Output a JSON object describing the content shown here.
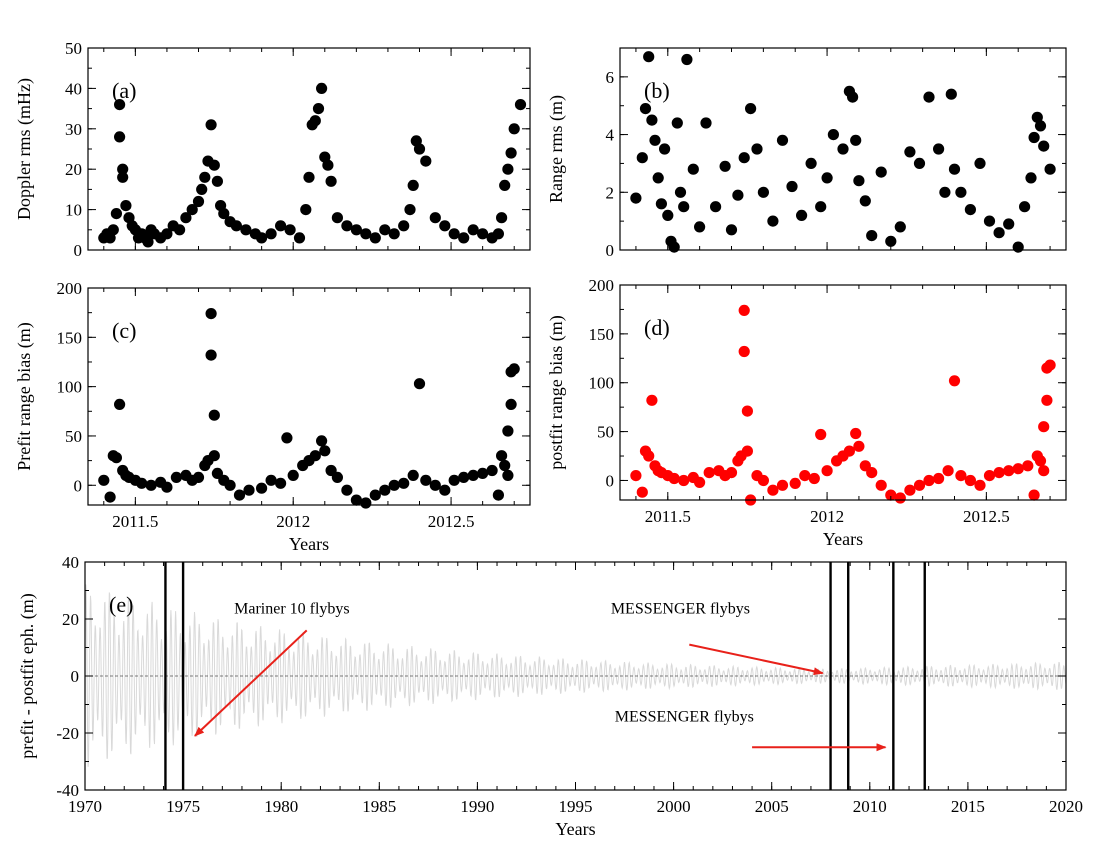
{
  "chart_data": [
    {
      "id": "a",
      "type": "scatter",
      "panel_label": "(a)",
      "ylabel": "Doppler rms (mHz)",
      "xlabel": "",
      "xlim": [
        2011.35,
        2012.75
      ],
      "ylim": [
        0,
        50
      ],
      "xticks": [
        2011.5,
        2012,
        2012.5
      ],
      "xtick_labels": [
        "",
        "",
        ""
      ],
      "yticks": [
        0,
        10,
        20,
        30,
        40,
        50
      ],
      "ytick_labels": [
        "0",
        "10",
        "20",
        "30",
        "40",
        "50"
      ],
      "marker_color": "#000000",
      "x": [
        2011.4,
        2011.41,
        2011.42,
        2011.43,
        2011.44,
        2011.45,
        2011.45,
        2011.46,
        2011.46,
        2011.47,
        2011.48,
        2011.49,
        2011.5,
        2011.51,
        2011.52,
        2011.53,
        2011.54,
        2011.55,
        2011.56,
        2011.58,
        2011.6,
        2011.62,
        2011.64,
        2011.66,
        2011.68,
        2011.7,
        2011.71,
        2011.72,
        2011.73,
        2011.74,
        2011.75,
        2011.76,
        2011.77,
        2011.78,
        2011.8,
        2011.82,
        2011.85,
        2011.88,
        2011.9,
        2011.93,
        2011.96,
        2011.99,
        2012.02,
        2012.04,
        2012.05,
        2012.06,
        2012.07,
        2012.08,
        2012.09,
        2012.1,
        2012.11,
        2012.12,
        2012.14,
        2012.17,
        2012.2,
        2012.23,
        2012.26,
        2012.29,
        2012.32,
        2012.35,
        2012.37,
        2012.38,
        2012.39,
        2012.4,
        2012.42,
        2012.45,
        2012.48,
        2012.51,
        2012.54,
        2012.57,
        2012.6,
        2012.63,
        2012.65,
        2012.66,
        2012.67,
        2012.68,
        2012.69,
        2012.7,
        2012.72
      ],
      "y": [
        3,
        4,
        3,
        5,
        9,
        36,
        28,
        20,
        18,
        11,
        8,
        6,
        5,
        3,
        4,
        3,
        2,
        5,
        4,
        3,
        4,
        6,
        5,
        8,
        10,
        12,
        15,
        18,
        22,
        31,
        21,
        17,
        11,
        9,
        7,
        6,
        5,
        4,
        3,
        4,
        6,
        5,
        3,
        10,
        18,
        31,
        32,
        35,
        40,
        23,
        21,
        17,
        8,
        6,
        5,
        4,
        3,
        5,
        4,
        6,
        10,
        16,
        27,
        25,
        22,
        8,
        6,
        4,
        3,
        5,
        4,
        3,
        4,
        8,
        16,
        20,
        24,
        30,
        36
      ]
    },
    {
      "id": "b",
      "type": "scatter",
      "panel_label": "(b)",
      "ylabel": "Range rms (m)",
      "xlabel": "",
      "xlim": [
        2011.35,
        2012.75
      ],
      "ylim": [
        0,
        7
      ],
      "xticks": [
        2011.5,
        2012,
        2012.5
      ],
      "xtick_labels": [
        "",
        "",
        ""
      ],
      "yticks": [
        0,
        2,
        4,
        6
      ],
      "ytick_labels": [
        "0",
        "2",
        "4",
        "6"
      ],
      "marker_color": "#000000",
      "x": [
        2011.4,
        2011.42,
        2011.43,
        2011.44,
        2011.45,
        2011.46,
        2011.47,
        2011.48,
        2011.49,
        2011.5,
        2011.51,
        2011.52,
        2011.53,
        2011.54,
        2011.55,
        2011.56,
        2011.58,
        2011.6,
        2011.62,
        2011.65,
        2011.68,
        2011.7,
        2011.72,
        2011.74,
        2011.76,
        2011.78,
        2011.8,
        2011.83,
        2011.86,
        2011.89,
        2011.92,
        2011.95,
        2011.98,
        2012.0,
        2012.02,
        2012.05,
        2012.07,
        2012.08,
        2012.09,
        2012.1,
        2012.12,
        2012.14,
        2012.17,
        2012.2,
        2012.23,
        2012.26,
        2012.29,
        2012.32,
        2012.35,
        2012.37,
        2012.39,
        2012.4,
        2012.42,
        2012.45,
        2012.48,
        2012.51,
        2012.54,
        2012.57,
        2012.6,
        2012.62,
        2012.64,
        2012.65,
        2012.66,
        2012.67,
        2012.68,
        2012.7
      ],
      "y": [
        1.8,
        3.2,
        4.9,
        6.7,
        4.5,
        3.8,
        2.5,
        1.6,
        3.5,
        1.2,
        0.3,
        0.1,
        4.4,
        2.0,
        1.5,
        6.6,
        2.8,
        0.8,
        4.4,
        1.5,
        2.9,
        0.7,
        1.9,
        3.2,
        4.9,
        3.5,
        2.0,
        1.0,
        3.8,
        2.2,
        1.2,
        3.0,
        1.5,
        2.5,
        4.0,
        3.5,
        5.5,
        5.3,
        3.8,
        2.4,
        1.7,
        0.5,
        2.7,
        0.3,
        0.8,
        3.4,
        3.0,
        5.3,
        3.5,
        2.0,
        5.4,
        2.8,
        2.0,
        1.4,
        3.0,
        1.0,
        0.6,
        0.9,
        0.1,
        1.5,
        2.5,
        3.9,
        4.6,
        4.3,
        3.6,
        2.8
      ]
    },
    {
      "id": "c",
      "type": "scatter",
      "panel_label": "(c)",
      "ylabel": "Prefit range bias (m)",
      "xlabel": "Years",
      "xlim": [
        2011.35,
        2012.75
      ],
      "ylim": [
        -20,
        200
      ],
      "xticks": [
        2011.5,
        2012,
        2012.5
      ],
      "xtick_labels": [
        "2011.5",
        "2012",
        "2012.5"
      ],
      "yticks": [
        0,
        50,
        100,
        150,
        200
      ],
      "ytick_labels": [
        "0",
        "50",
        "100",
        "150",
        "200"
      ],
      "marker_color": "#000000",
      "x": [
        2011.4,
        2011.42,
        2011.43,
        2011.44,
        2011.45,
        2011.46,
        2011.47,
        2011.48,
        2011.5,
        2011.52,
        2011.55,
        2011.58,
        2011.6,
        2011.63,
        2011.66,
        2011.68,
        2011.7,
        2011.72,
        2011.73,
        2011.74,
        2011.74,
        2011.75,
        2011.75,
        2011.76,
        2011.78,
        2011.8,
        2011.83,
        2011.86,
        2011.9,
        2011.93,
        2011.96,
        2011.98,
        2012.0,
        2012.03,
        2012.05,
        2012.07,
        2012.09,
        2012.1,
        2012.12,
        2012.14,
        2012.17,
        2012.2,
        2012.23,
        2012.26,
        2012.29,
        2012.32,
        2012.35,
        2012.38,
        2012.4,
        2012.42,
        2012.45,
        2012.48,
        2012.51,
        2012.54,
        2012.57,
        2012.6,
        2012.63,
        2012.65,
        2012.66,
        2012.67,
        2012.68,
        2012.68,
        2012.69,
        2012.69,
        2012.7
      ],
      "y": [
        5,
        -12,
        30,
        28,
        82,
        15,
        10,
        8,
        5,
        2,
        0,
        3,
        -2,
        8,
        10,
        5,
        8,
        20,
        25,
        132,
        174,
        71,
        30,
        12,
        5,
        0,
        -10,
        -5,
        -3,
        5,
        2,
        48,
        10,
        20,
        25,
        30,
        45,
        35,
        15,
        8,
        -5,
        -15,
        -18,
        -10,
        -5,
        0,
        2,
        10,
        103,
        5,
        0,
        -5,
        5,
        8,
        10,
        12,
        15,
        -10,
        30,
        20,
        10,
        55,
        82,
        115,
        118
      ]
    },
    {
      "id": "d",
      "type": "scatter",
      "panel_label": "(d)",
      "ylabel": "postfit range bias (m)",
      "xlabel": "Years",
      "xlim": [
        2011.35,
        2012.75
      ],
      "ylim": [
        -20,
        200
      ],
      "xticks": [
        2011.5,
        2012,
        2012.5
      ],
      "xtick_labels": [
        "2011.5",
        "2012",
        "2012.5"
      ],
      "yticks": [
        0,
        50,
        100,
        150,
        200
      ],
      "ytick_labels": [
        "0",
        "50",
        "100",
        "150",
        "200"
      ],
      "marker_color": "#ff0000",
      "x": [
        2011.4,
        2011.42,
        2011.43,
        2011.44,
        2011.45,
        2011.46,
        2011.47,
        2011.48,
        2011.5,
        2011.52,
        2011.55,
        2011.58,
        2011.6,
        2011.63,
        2011.66,
        2011.68,
        2011.7,
        2011.72,
        2011.73,
        2011.74,
        2011.74,
        2011.75,
        2011.75,
        2011.76,
        2011.78,
        2011.8,
        2011.83,
        2011.86,
        2011.9,
        2011.93,
        2011.96,
        2011.98,
        2012.0,
        2012.03,
        2012.05,
        2012.07,
        2012.09,
        2012.1,
        2012.12,
        2012.14,
        2012.17,
        2012.2,
        2012.23,
        2012.26,
        2012.29,
        2012.32,
        2012.35,
        2012.38,
        2012.4,
        2012.42,
        2012.45,
        2012.48,
        2012.51,
        2012.54,
        2012.57,
        2012.6,
        2012.63,
        2012.65,
        2012.66,
        2012.67,
        2012.68,
        2012.68,
        2012.69,
        2012.69,
        2012.7
      ],
      "y": [
        5,
        -12,
        30,
        25,
        82,
        15,
        10,
        8,
        5,
        2,
        0,
        3,
        -2,
        8,
        10,
        5,
        8,
        20,
        25,
        132,
        174,
        71,
        30,
        -20,
        5,
        0,
        -10,
        -5,
        -3,
        5,
        2,
        47,
        10,
        20,
        25,
        30,
        48,
        35,
        15,
        8,
        -5,
        -15,
        -18,
        -10,
        -5,
        0,
        2,
        10,
        102,
        5,
        0,
        -5,
        5,
        8,
        10,
        12,
        15,
        -15,
        25,
        20,
        10,
        55,
        82,
        115,
        118
      ]
    },
    {
      "id": "e",
      "type": "line",
      "panel_label": "(e)",
      "ylabel": "prefit - postfit eph. (m)",
      "xlabel": "Years",
      "xlim": [
        1970,
        2020
      ],
      "ylim": [
        -40,
        40
      ],
      "xticks": [
        1970,
        1975,
        1980,
        1985,
        1990,
        1995,
        2000,
        2005,
        2010,
        2015,
        2020
      ],
      "xtick_labels": [
        "1970",
        "1975",
        "1980",
        "1985",
        "1990",
        "1995",
        "2000",
        "2005",
        "2010",
        "2015",
        "2020"
      ],
      "yticks": [
        -40,
        -20,
        0,
        20,
        40
      ],
      "ytick_labels": [
        "-40",
        "-20",
        "0",
        "20",
        "40"
      ],
      "line_color": "#d9d9d9",
      "series_model": {
        "period_years": 0.2408,
        "amplitude_at_start": 33,
        "amplitude_at_2008": 2.5,
        "amplitude_at_2020": 5
      },
      "flyby_lines_years": [
        1974.1,
        1975.0,
        2008.0,
        2008.9,
        2011.2,
        2012.8
      ],
      "annotations": [
        {
          "text": "Mariner 10 flybys",
          "text_at": [
            1977.6,
            22
          ],
          "arrow_from": [
            1981.3,
            16
          ],
          "arrow_to": [
            1975.6,
            -21
          ]
        },
        {
          "text": "MESSENGER flybys",
          "text_at": [
            1996.8,
            22
          ],
          "arrow_from": [
            2000.8,
            11
          ],
          "arrow_to": [
            2007.6,
            1
          ]
        },
        {
          "text": "MESSENGER flybys",
          "text_at": [
            1997.0,
            -16
          ],
          "arrow_from": [
            2004.0,
            -25
          ],
          "arrow_to": [
            2010.8,
            -25
          ]
        }
      ]
    }
  ]
}
